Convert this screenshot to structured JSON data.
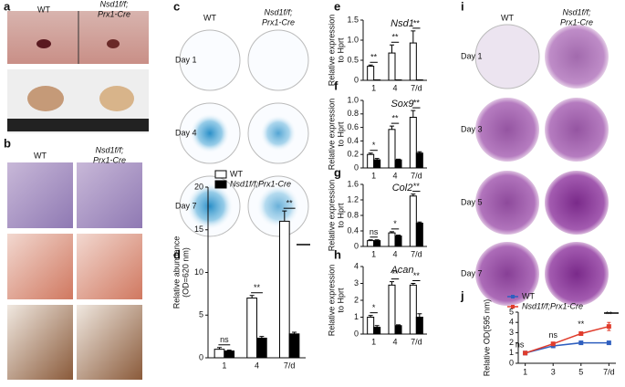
{
  "figure": {
    "panel_labels": [
      "a",
      "b",
      "c",
      "d",
      "e",
      "f",
      "g",
      "h",
      "i",
      "j"
    ],
    "a": {
      "wt": "WT",
      "ko": [
        "Nsd1f/f;",
        "Prx1-Cre"
      ]
    },
    "b": {
      "wt": "WT",
      "ko": [
        "Nsd1f/f;",
        "Prx1-Cre"
      ]
    },
    "c": {
      "wt": "WT",
      "ko": [
        "Nsd1f/f;",
        "Prx1-Cre"
      ],
      "days": [
        "Day 1",
        "Day 4",
        "Day 7"
      ]
    },
    "i": {
      "wt": "WT",
      "ko": [
        "Nsd1f/f;",
        "Prx1-Cre"
      ],
      "days": [
        "Day 1",
        "Day 3",
        "Day 5",
        "Day 7"
      ]
    }
  },
  "chart_data": [
    {
      "type": "bar",
      "ylabel": [
        "Relative abundance",
        "(OD=620 nm)"
      ],
      "categories": [
        "1",
        "4",
        "7/d"
      ],
      "legend": "upper left",
      "series": [
        {
          "name": "WT",
          "color": "#ffffff",
          "values": [
            1,
            7,
            16
          ],
          "error": [
            0.2,
            0.3,
            1.2
          ]
        },
        {
          "name": "Nsd1f/f;Prx1-Cre",
          "color": "#000000",
          "values": [
            0.8,
            2.3,
            2.8
          ],
          "error": [
            0.1,
            0.2,
            0.2
          ]
        }
      ],
      "annotations": [
        "ns",
        "**",
        "**"
      ],
      "ylim": [
        0,
        20
      ],
      "yticks": [
        0,
        5,
        10,
        15,
        20
      ]
    },
    {
      "type": "bar",
      "title": "Nsd1",
      "ylabel": [
        "Relative expression",
        "to Hprt"
      ],
      "categories": [
        "1",
        "4",
        "7/d"
      ],
      "series": [
        {
          "name": "WT",
          "color": "#ffffff",
          "values": [
            0.35,
            0.68,
            0.93
          ],
          "error": [
            0.03,
            0.2,
            0.3
          ]
        },
        {
          "name": "Nsd1f/f;Prx1-Cre",
          "color": "#000000",
          "values": [
            0.01,
            0.01,
            0.01
          ],
          "error": [
            0,
            0,
            0
          ]
        }
      ],
      "annotations": [
        "**",
        "**",
        "**"
      ],
      "ylim": [
        0,
        1.5
      ],
      "yticks": [
        0,
        0.5,
        {
          "value": 1,
          "label": "1.0"
        },
        1.5
      ]
    },
    {
      "type": "bar",
      "title": "Sox9",
      "ylabel": [
        "Relative expression",
        "to Hprt"
      ],
      "categories": [
        "1",
        "4",
        "7/d"
      ],
      "series": [
        {
          "name": "WT",
          "color": "#ffffff",
          "values": [
            0.2,
            0.57,
            0.75
          ],
          "error": [
            0.02,
            0.05,
            0.1
          ]
        },
        {
          "name": "Nsd1f/f;Prx1-Cre",
          "color": "#000000",
          "values": [
            0.12,
            0.12,
            0.22
          ],
          "error": [
            0.02,
            0.01,
            0.02
          ]
        }
      ],
      "annotations": [
        "*",
        "**",
        "**"
      ],
      "ylim": [
        0,
        1
      ],
      "yticks": [
        0,
        0.2,
        0.4,
        0.6,
        0.8,
        {
          "value": 1,
          "label": "1.0"
        }
      ]
    },
    {
      "type": "bar",
      "title": "Col2",
      "ylabel": [
        "Relative expression",
        "to Hprt"
      ],
      "categories": [
        "1",
        "4",
        "7/d"
      ],
      "series": [
        {
          "name": "WT",
          "color": "#ffffff",
          "values": [
            0.15,
            0.35,
            1.3
          ],
          "error": [
            0.02,
            0.03,
            0.05
          ]
        },
        {
          "name": "Nsd1f/f;Prx1-Cre",
          "color": "#000000",
          "values": [
            0.15,
            0.27,
            0.6
          ],
          "error": [
            0.02,
            0.02,
            0.03
          ]
        }
      ],
      "annotations": [
        "ns",
        "*",
        "**"
      ],
      "ylim": [
        0,
        1.6
      ],
      "yticks": [
        0,
        0.4,
        0.8,
        1.2,
        1.6
      ]
    },
    {
      "type": "bar",
      "title": "Acan",
      "ylabel": [
        "Relative expression",
        "to Hprt"
      ],
      "categories": [
        "1",
        "4",
        "7/d"
      ],
      "series": [
        {
          "name": "WT",
          "color": "#ffffff",
          "values": [
            1,
            2.9,
            2.9
          ],
          "error": [
            0.1,
            0.2,
            0.1
          ]
        },
        {
          "name": "Nsd1f/f;Prx1-Cre",
          "color": "#000000",
          "values": [
            0.4,
            0.5,
            1
          ],
          "error": [
            0.1,
            0.05,
            0.2
          ]
        }
      ],
      "annotations": [
        "*",
        "**",
        "**"
      ],
      "ylim": [
        0,
        4
      ],
      "yticks": [
        0,
        1,
        2,
        3,
        4
      ]
    },
    {
      "type": "line",
      "ylabel": "Relative OD(595 nm)",
      "legend": "upper left",
      "x": [
        1,
        3,
        5,
        7
      ],
      "series": [
        {
          "name": "WT",
          "color": "#2f5fbf",
          "values": [
            1,
            1.7,
            2,
            2
          ],
          "error": [
            0.03,
            0.05,
            0.05,
            0.05
          ]
        },
        {
          "name": "Nsd1f/f;Prx1-Cre",
          "color": "#e03c2c",
          "values": [
            1,
            1.9,
            2.9,
            3.6
          ],
          "error": [
            0.05,
            0.1,
            0.15,
            0.4
          ]
        }
      ],
      "annotations": [
        "ns",
        "ns",
        "**",
        "**"
      ],
      "xlim": [
        0.5,
        7.5
      ],
      "xticks": [
        1,
        3,
        5,
        {
          "value": 7,
          "label": "7/d"
        }
      ],
      "ylim": [
        0,
        5
      ],
      "yticks": [
        0,
        1,
        2,
        3,
        4,
        5
      ]
    }
  ]
}
